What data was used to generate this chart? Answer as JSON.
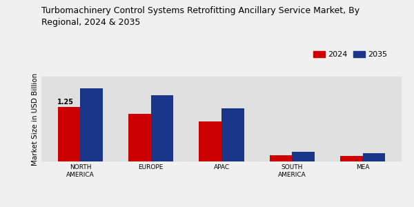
{
  "title": "Turbomachinery Control Systems Retrofitting Ancillary Service Market, By\nRegional, 2024 & 2035",
  "title_fontsize": 9.0,
  "ylabel": "Market Size in USD Billion",
  "ylabel_fontsize": 7.5,
  "categories": [
    "NORTH\nAMERICA",
    "EUROPE",
    "APAC",
    "SOUTH\nAMERICA",
    "MEA"
  ],
  "values_2024": [
    1.25,
    1.1,
    0.92,
    0.15,
    0.12
  ],
  "values_2035": [
    1.68,
    1.52,
    1.22,
    0.22,
    0.19
  ],
  "color_2024": "#cc0000",
  "color_2035": "#1a3688",
  "bar_width": 0.32,
  "annotation_label": "1.25",
  "legend_labels": [
    "2024",
    "2035"
  ],
  "legend_fontsize": 8,
  "fig_bg_color": "#f0f0f0",
  "plot_bg_color": "#e0e0e0",
  "ylim": [
    0,
    1.95
  ],
  "bottom_bar_color": "#cc0000"
}
